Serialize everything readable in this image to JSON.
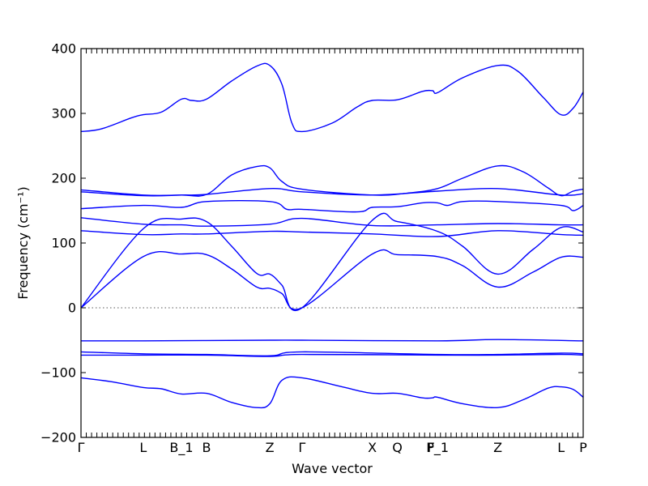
{
  "chart_data": {
    "type": "line",
    "title": "",
    "xlabel": "Wave vector",
    "ylabel": "Frequency (cm⁻¹)",
    "ylim": [
      -200,
      400
    ],
    "yticks": [
      -200,
      -100,
      0,
      100,
      200,
      300,
      400
    ],
    "ytick_labels": [
      "−200",
      "−100",
      "0",
      "100",
      "200",
      "300",
      "400"
    ],
    "xlim": [
      0,
      1
    ],
    "high_symmetry_points": [
      {
        "label": "Γ",
        "x": 0.0
      },
      {
        "label": "L",
        "x": 0.124
      },
      {
        "label": "B_1",
        "x": 0.2
      },
      {
        "label": "B",
        "x": 0.25
      },
      {
        "label": "Z",
        "x": 0.376
      },
      {
        "label": "Γ",
        "x": 0.44
      },
      {
        "label": "X",
        "x": 0.58
      },
      {
        "label": "Q",
        "x": 0.63
      },
      {
        "label": "F",
        "x": 0.697
      },
      {
        "label": "P_1",
        "x": 0.71
      },
      {
        "label": "Z",
        "x": 0.83
      },
      {
        "label": "L",
        "x": 0.956
      },
      {
        "label": "P",
        "x": 1.0
      }
    ],
    "zero_line": true,
    "grid": false,
    "line_color": "#0000ff",
    "series": [
      {
        "values": [
          [
            0,
            272
          ],
          [
            0.04,
            276
          ],
          [
            0.1,
            293
          ],
          [
            0.124,
            298
          ],
          [
            0.16,
            302
          ],
          [
            0.2,
            322
          ],
          [
            0.22,
            320
          ],
          [
            0.25,
            322
          ],
          [
            0.3,
            350
          ],
          [
            0.35,
            373
          ],
          [
            0.376,
            374
          ],
          [
            0.4,
            345
          ],
          [
            0.42,
            285
          ],
          [
            0.44,
            272
          ],
          [
            0.5,
            285
          ],
          [
            0.55,
            310
          ],
          [
            0.58,
            320
          ],
          [
            0.63,
            321
          ],
          [
            0.68,
            334
          ],
          [
            0.7,
            335
          ],
          [
            0.71,
            332
          ],
          [
            0.76,
            355
          ],
          [
            0.83,
            374
          ],
          [
            0.87,
            365
          ],
          [
            0.92,
            325
          ],
          [
            0.956,
            298
          ],
          [
            0.98,
            308
          ],
          [
            1.0,
            333
          ]
        ]
      },
      {
        "values": [
          [
            0,
            182
          ],
          [
            0.124,
            174
          ],
          [
            0.2,
            174
          ],
          [
            0.25,
            175
          ],
          [
            0.3,
            205
          ],
          [
            0.35,
            218
          ],
          [
            0.376,
            216
          ],
          [
            0.4,
            195
          ],
          [
            0.44,
            183
          ],
          [
            0.58,
            174
          ],
          [
            0.65,
            177
          ],
          [
            0.71,
            184
          ],
          [
            0.76,
            200
          ],
          [
            0.83,
            219
          ],
          [
            0.88,
            210
          ],
          [
            0.93,
            185
          ],
          [
            0.956,
            173
          ],
          [
            0.98,
            180
          ],
          [
            1.0,
            183
          ]
        ]
      },
      {
        "values": [
          [
            0,
            179
          ],
          [
            0.124,
            173
          ],
          [
            0.2,
            174
          ],
          [
            0.25,
            175
          ],
          [
            0.376,
            184
          ],
          [
            0.44,
            179
          ],
          [
            0.58,
            174
          ],
          [
            0.71,
            180
          ],
          [
            0.83,
            184
          ],
          [
            0.956,
            174
          ],
          [
            1.0,
            176
          ]
        ]
      },
      {
        "values": [
          [
            0,
            153
          ],
          [
            0.124,
            158
          ],
          [
            0.2,
            155
          ],
          [
            0.25,
            164
          ],
          [
            0.376,
            164
          ],
          [
            0.41,
            152
          ],
          [
            0.44,
            152
          ],
          [
            0.55,
            148
          ],
          [
            0.58,
            155
          ],
          [
            0.63,
            156
          ],
          [
            0.68,
            162
          ],
          [
            0.71,
            162
          ],
          [
            0.73,
            158
          ],
          [
            0.76,
            164
          ],
          [
            0.83,
            164
          ],
          [
            0.956,
            158
          ],
          [
            0.98,
            150
          ],
          [
            1.0,
            158
          ]
        ]
      },
      {
        "values": [
          [
            0,
            139
          ],
          [
            0.124,
            129
          ],
          [
            0.2,
            128
          ],
          [
            0.25,
            126
          ],
          [
            0.376,
            129
          ],
          [
            0.44,
            138
          ],
          [
            0.58,
            127
          ],
          [
            0.71,
            128
          ],
          [
            0.83,
            130
          ],
          [
            0.956,
            128
          ],
          [
            1.0,
            128
          ]
        ]
      },
      {
        "values": [
          [
            0,
            119
          ],
          [
            0.124,
            113
          ],
          [
            0.2,
            114
          ],
          [
            0.25,
            114
          ],
          [
            0.376,
            118
          ],
          [
            0.44,
            117
          ],
          [
            0.58,
            114
          ],
          [
            0.71,
            110
          ],
          [
            0.83,
            119
          ],
          [
            0.956,
            113
          ],
          [
            1.0,
            112
          ]
        ]
      },
      {
        "values": [
          [
            0,
            0
          ],
          [
            0.124,
            122
          ],
          [
            0.2,
            137
          ],
          [
            0.25,
            133
          ],
          [
            0.3,
            95
          ],
          [
            0.35,
            53
          ],
          [
            0.376,
            52
          ],
          [
            0.4,
            35
          ],
          [
            0.44,
            0
          ],
          [
            0.58,
            135
          ],
          [
            0.63,
            133
          ],
          [
            0.71,
            118
          ],
          [
            0.76,
            95
          ],
          [
            0.83,
            52
          ],
          [
            0.9,
            90
          ],
          [
            0.956,
            124
          ],
          [
            1.0,
            117
          ]
        ]
      },
      {
        "values": [
          [
            0,
            0
          ],
          [
            0.124,
            79
          ],
          [
            0.2,
            83
          ],
          [
            0.25,
            82
          ],
          [
            0.3,
            60
          ],
          [
            0.35,
            32
          ],
          [
            0.376,
            30
          ],
          [
            0.4,
            22
          ],
          [
            0.44,
            0
          ],
          [
            0.58,
            83
          ],
          [
            0.63,
            82
          ],
          [
            0.71,
            79
          ],
          [
            0.76,
            65
          ],
          [
            0.83,
            32
          ],
          [
            0.9,
            55
          ],
          [
            0.956,
            78
          ],
          [
            1.0,
            78
          ]
        ]
      },
      {
        "values": [
          [
            0,
            -51
          ],
          [
            0.124,
            -51
          ],
          [
            0.376,
            -50
          ],
          [
            0.44,
            -50
          ],
          [
            0.71,
            -51
          ],
          [
            0.83,
            -49
          ],
          [
            1.0,
            -51
          ]
        ]
      },
      {
        "values": [
          [
            0,
            -68
          ],
          [
            0.124,
            -71
          ],
          [
            0.25,
            -72
          ],
          [
            0.376,
            -74
          ],
          [
            0.44,
            -68
          ],
          [
            0.71,
            -72
          ],
          [
            0.83,
            -72
          ],
          [
            0.956,
            -70
          ],
          [
            1.0,
            -71
          ]
        ]
      },
      {
        "values": [
          [
            0,
            -73
          ],
          [
            0.124,
            -73
          ],
          [
            0.25,
            -73
          ],
          [
            0.376,
            -75
          ],
          [
            0.44,
            -72
          ],
          [
            0.71,
            -73
          ],
          [
            0.83,
            -73
          ],
          [
            0.956,
            -72
          ],
          [
            1.0,
            -73
          ]
        ]
      },
      {
        "values": [
          [
            0,
            -108
          ],
          [
            0.06,
            -114
          ],
          [
            0.124,
            -123
          ],
          [
            0.16,
            -125
          ],
          [
            0.2,
            -133
          ],
          [
            0.25,
            -132
          ],
          [
            0.3,
            -146
          ],
          [
            0.35,
            -154
          ],
          [
            0.376,
            -148
          ],
          [
            0.4,
            -112
          ],
          [
            0.44,
            -108
          ],
          [
            0.52,
            -122
          ],
          [
            0.58,
            -132
          ],
          [
            0.63,
            -132
          ],
          [
            0.68,
            -139
          ],
          [
            0.7,
            -139
          ],
          [
            0.71,
            -138
          ],
          [
            0.76,
            -148
          ],
          [
            0.83,
            -154
          ],
          [
            0.88,
            -142
          ],
          [
            0.93,
            -124
          ],
          [
            0.956,
            -122
          ],
          [
            0.98,
            -126
          ],
          [
            1.0,
            -138
          ]
        ]
      }
    ]
  }
}
